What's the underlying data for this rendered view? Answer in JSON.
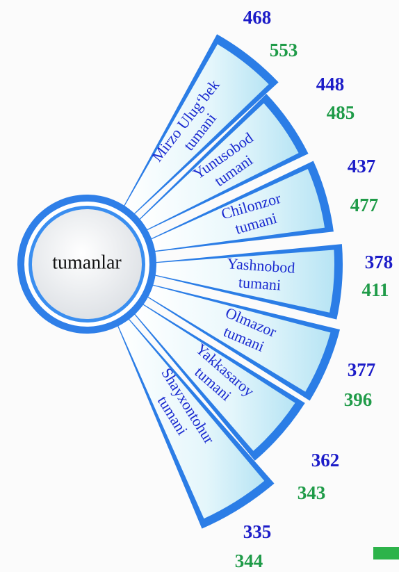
{
  "center": {
    "label": "tumanlar"
  },
  "nodes": [
    {
      "label": [
        "Mirzo Ulug‘bek",
        "tumani"
      ],
      "value1": 468,
      "value2": 553
    },
    {
      "label": [
        "Yunusobod",
        "tumani"
      ],
      "value1": 448,
      "value2": 485
    },
    {
      "label": [
        "Chilonzor",
        "tumani"
      ],
      "value1": 437,
      "value2": 477
    },
    {
      "label": [
        "Yashnobod",
        "tumani"
      ],
      "value1": 378,
      "value2": 411
    },
    {
      "label": [
        "Olmazor",
        "tumani"
      ],
      "value1": 377,
      "value2": 396
    },
    {
      "label": [
        "Yakkasaroy",
        "tumani"
      ],
      "value1": 362,
      "value2": 343
    },
    {
      "label": [
        "Shayxontohur",
        "tumani"
      ],
      "value1": 335,
      "value2": 344
    }
  ]
}
